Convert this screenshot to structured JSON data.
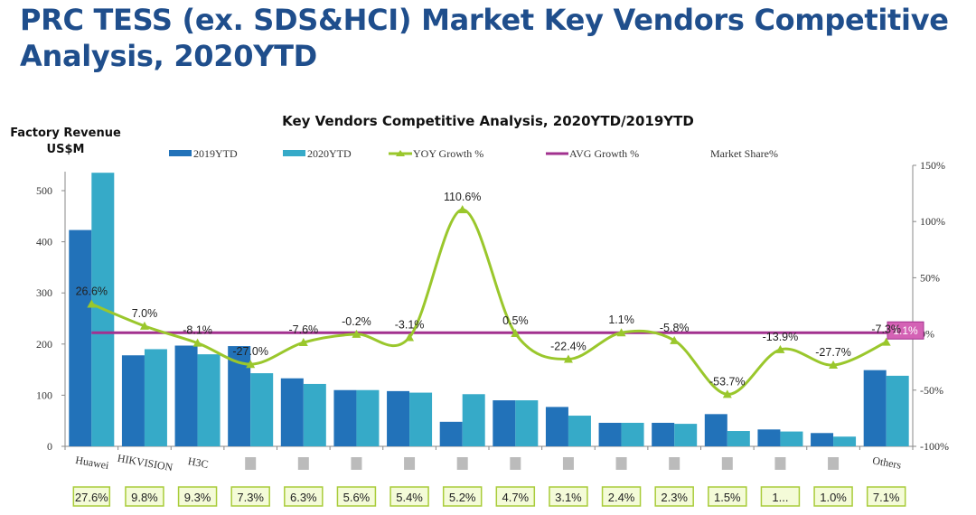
{
  "page_title": "PRC TESS (ex. SDS&HCI) Market Key Vendors Competitive Analysis, 2020YTD",
  "chart_data": {
    "type": "bar+line",
    "title": "Key Vendors Competitive Analysis, 2020YTD/2019YTD",
    "ylabel": "Factory Revenue US$M",
    "ylim": [
      0,
      550
    ],
    "yticks": [
      0,
      100,
      200,
      300,
      400,
      500
    ],
    "y2lim": [
      -100,
      150
    ],
    "y2ticks": [
      "-100%",
      "-50%",
      "0%",
      "50%",
      "100%",
      "150%"
    ],
    "y2tick_values": [
      -100,
      -50,
      0,
      50,
      100,
      150
    ],
    "categories": [
      "Huawei",
      "HIKVISION",
      "H3C",
      "",
      "",
      "",
      "",
      "",
      "",
      "",
      "",
      "",
      "",
      "",
      "",
      "Others"
    ],
    "series": [
      {
        "name": "2019YTD",
        "type": "bar",
        "color": "#2272b9",
        "values": [
          423,
          178,
          197,
          196,
          133,
          110,
          108,
          48,
          90,
          77,
          46,
          46,
          63,
          33,
          26,
          149
        ]
      },
      {
        "name": "2020YTD",
        "type": "bar",
        "color": "#36aac8",
        "values": [
          535,
          190,
          180,
          143,
          122,
          110,
          105,
          102,
          90,
          60,
          46,
          44,
          30,
          29,
          19,
          138
        ]
      },
      {
        "name": "YOY Growth %",
        "type": "line",
        "axis": "right",
        "color": "#9ac72c",
        "values": [
          26.6,
          7.0,
          -8.1,
          -27.0,
          -7.6,
          -0.2,
          -3.1,
          110.6,
          0.5,
          -22.4,
          1.1,
          -5.8,
          -53.7,
          -13.9,
          -27.7,
          -7.3
        ],
        "labels": [
          "26.6%",
          "7.0%",
          "-8.1%",
          "-27.0%",
          "-7.6%",
          "-0.2%",
          "-3.1%",
          "110.6%",
          "0.5%",
          "-22.4%",
          "1.1%",
          "-5.8%",
          "-53.7%",
          "-13.9%",
          "-27.7%",
          "-7.3%"
        ]
      },
      {
        "name": "AVG Growth %",
        "type": "line",
        "axis": "right",
        "color": "#a2318f",
        "value": 1.1,
        "label": "1.1%"
      },
      {
        "name": "Market Share%",
        "type": "labels",
        "values": [
          "27.6%",
          "9.8%",
          "9.3%",
          "7.3%",
          "6.3%",
          "5.6%",
          "5.4%",
          "5.2%",
          "4.7%",
          "3.1%",
          "2.4%",
          "2.3%",
          "1.5%",
          "1...",
          "1.0%",
          "7.1%"
        ]
      }
    ],
    "legend": "top",
    "grid": false
  }
}
